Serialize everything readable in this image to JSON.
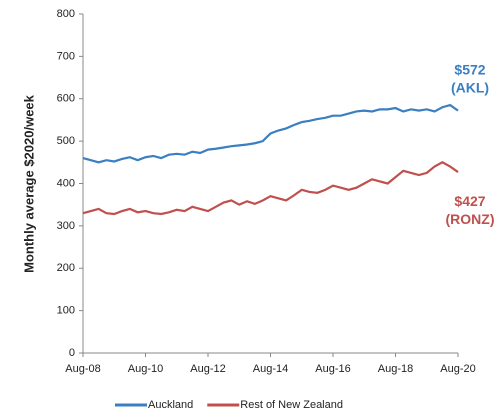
{
  "chart_data": {
    "type": "line",
    "y_label": "Monthly average $2020/week",
    "categories": [
      "Aug-08",
      null,
      null,
      null,
      null,
      null,
      null,
      null,
      "Aug-10",
      null,
      null,
      null,
      null,
      null,
      null,
      null,
      "Aug-12",
      null,
      null,
      null,
      null,
      null,
      null,
      null,
      "Aug-14",
      null,
      null,
      null,
      null,
      null,
      null,
      null,
      "Aug-16",
      null,
      null,
      null,
      null,
      null,
      null,
      null,
      "Aug-18",
      null,
      null,
      null,
      null,
      null,
      null,
      null,
      "Aug-20"
    ],
    "series": [
      {
        "name": "Auckland",
        "color": "#3a7fc1",
        "values": [
          460,
          455,
          450,
          455,
          452,
          458,
          462,
          455,
          462,
          465,
          460,
          468,
          470,
          468,
          475,
          472,
          480,
          482,
          485,
          488,
          490,
          492,
          495,
          500,
          518,
          525,
          530,
          538,
          545,
          548,
          552,
          555,
          560,
          560,
          565,
          570,
          572,
          570,
          575,
          575,
          578,
          570,
          575,
          572,
          575,
          570,
          580,
          585,
          572
        ]
      },
      {
        "name": "Rest of New Zealand",
        "color": "#c0504d",
        "values": [
          330,
          335,
          340,
          330,
          328,
          335,
          340,
          332,
          335,
          330,
          328,
          332,
          338,
          335,
          345,
          340,
          335,
          345,
          355,
          360,
          350,
          358,
          352,
          360,
          370,
          365,
          360,
          372,
          385,
          380,
          378,
          385,
          395,
          390,
          385,
          390,
          400,
          410,
          405,
          400,
          415,
          430,
          425,
          420,
          425,
          440,
          450,
          440,
          427
        ]
      }
    ],
    "annotations": [
      {
        "lines": [
          "$572",
          "(AKL)"
        ],
        "color": "#3a7fc1"
      },
      {
        "lines": [
          "$427",
          "(RONZ)"
        ],
        "color": "#c0504d"
      }
    ],
    "ylim": [
      0,
      800
    ],
    "yticks": [
      0,
      100,
      200,
      300,
      400,
      500,
      600,
      700,
      800
    ],
    "grid": false,
    "legend": "bottom"
  }
}
